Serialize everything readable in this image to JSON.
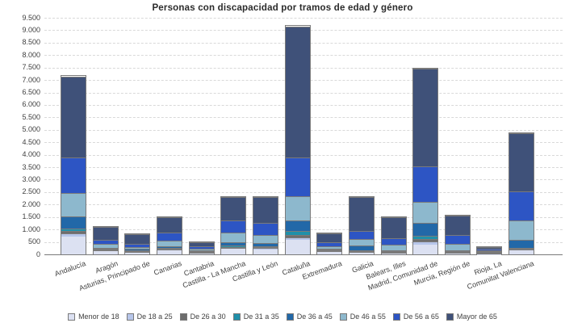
{
  "chart_data": {
    "type": "bar",
    "stacked": true,
    "title": "Personas con discapacidad por tramos de edad y género",
    "xlabel": "",
    "ylabel": "",
    "ylim": [
      0,
      9500
    ],
    "ytick_step": 500,
    "ytick_labels": [
      "0",
      "500",
      "1.000",
      "1.500",
      "2.000",
      "2.500",
      "3.000",
      "3.500",
      "4.000",
      "4.500",
      "5.000",
      "5.500",
      "6.000",
      "6.500",
      "7.000",
      "7.500",
      "8.000",
      "8.500",
      "9.000",
      "9.500"
    ],
    "grid": "horizontal-dashed",
    "legend_position": "bottom",
    "categories": [
      "Andalucía",
      "Aragón",
      "Asturias, Principado de",
      "Canarias",
      "Cantabria",
      "Castilla - La Mancha",
      "Castilla y León",
      "Cataluña",
      "Extremadura",
      "Galicia",
      "Balears, Illes",
      "Madrid, Comunidad de",
      "Murcia, Región de",
      "Rioja, La",
      "Comunitat Valenciana"
    ],
    "series": [
      {
        "name": "Menor de 18",
        "color": "#dce1f2",
        "values": [
          700,
          120,
          80,
          150,
          55,
          230,
          210,
          585,
          90,
          80,
          35,
          400,
          45,
          30,
          150
        ]
      },
      {
        "name": "De 18 a 25",
        "color": "#b7c6ea",
        "values": [
          140,
          30,
          20,
          35,
          12,
          45,
          45,
          100,
          20,
          20,
          10,
          110,
          15,
          8,
          40
        ]
      },
      {
        "name": "De 26 a 30",
        "color": "#6d6d6d",
        "values": [
          90,
          20,
          15,
          25,
          8,
          30,
          30,
          100,
          15,
          15,
          8,
          110,
          12,
          5,
          35
        ]
      },
      {
        "name": "De 31 a 35",
        "color": "#1f90aa",
        "values": [
          100,
          25,
          20,
          30,
          10,
          40,
          40,
          160,
          18,
          25,
          12,
          110,
          15,
          6,
          45
        ]
      },
      {
        "name": "De 36 a 45",
        "color": "#2268a8",
        "values": [
          500,
          60,
          50,
          90,
          30,
          130,
          120,
          420,
          50,
          185,
          25,
          520,
          20,
          15,
          325
        ]
      },
      {
        "name": "De 46 a 55",
        "color": "#8db8cd",
        "values": [
          950,
          140,
          90,
          200,
          60,
          390,
          325,
          975,
          110,
          270,
          235,
          870,
          275,
          35,
          780
        ]
      },
      {
        "name": "De 56 a 65",
        "color": "#2d55c4",
        "values": [
          1400,
          185,
          130,
          325,
          100,
          490,
          490,
          1560,
          160,
          325,
          270,
          1430,
          355,
          55,
          1150
        ]
      },
      {
        "name": "Mayor de 65",
        "color": "#3f5179",
        "values": [
          3270,
          520,
          395,
          645,
          225,
          945,
          1040,
          5260,
          387,
          1380,
          905,
          3900,
          810,
          146,
          2350
        ]
      }
    ]
  },
  "colors": {
    "background": "#ffffff",
    "grid": "#d9d9d9",
    "axis": "#7a7a7a",
    "bar_border": "#7a7a7a",
    "text": "#404040",
    "title": "#2b2b2b"
  }
}
